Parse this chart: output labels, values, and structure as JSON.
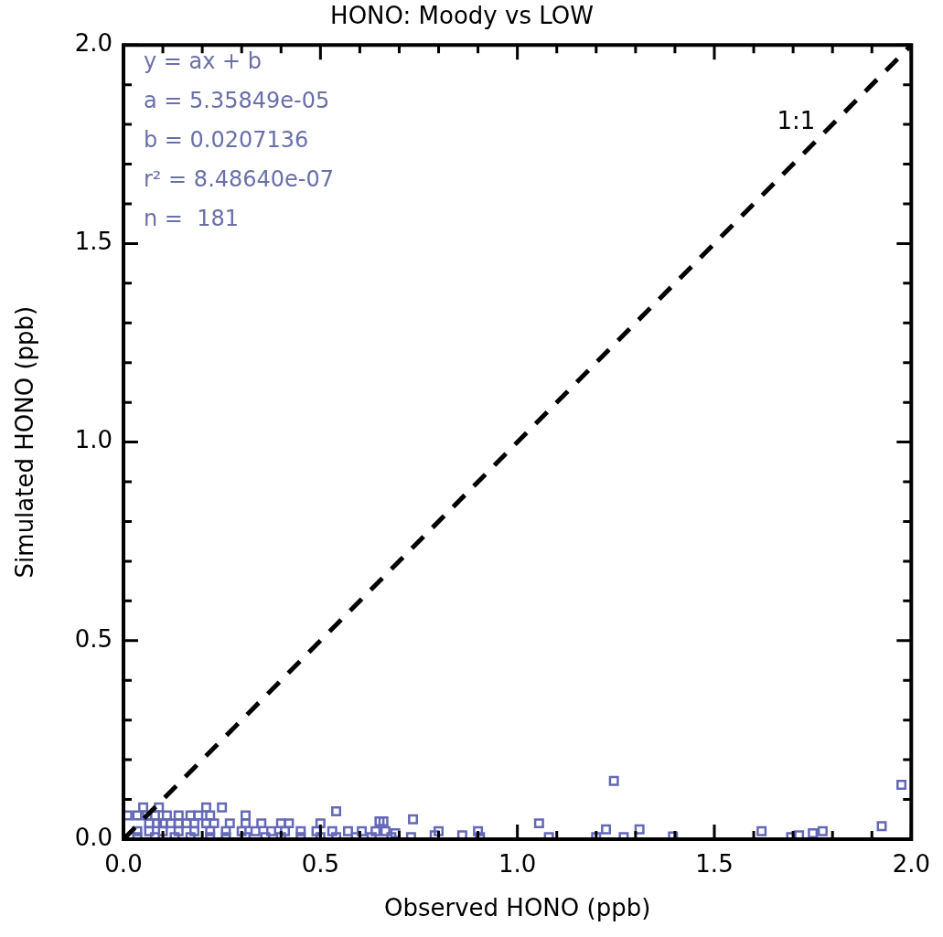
{
  "chart_data": {
    "type": "scatter",
    "title": "HONO: Moody vs LOW",
    "xlabel": "Observed HONO (ppb)",
    "ylabel": "Simulated HONO (ppb)",
    "xlim": [
      0,
      2
    ],
    "ylim": [
      0,
      2
    ],
    "xticks": [
      {
        "value": 0,
        "label": "0.0"
      },
      {
        "value": 0.1,
        "label": null
      },
      {
        "value": 0.2,
        "label": null
      },
      {
        "value": 0.3,
        "label": null
      },
      {
        "value": 0.4,
        "label": null
      },
      {
        "value": 0.5,
        "label": "0.5"
      },
      {
        "value": 0.6,
        "label": null
      },
      {
        "value": 0.7,
        "label": null
      },
      {
        "value": 0.8,
        "label": null
      },
      {
        "value": 0.9,
        "label": null
      },
      {
        "value": 1,
        "label": "1.0"
      },
      {
        "value": 1.1,
        "label": null
      },
      {
        "value": 1.2,
        "label": null
      },
      {
        "value": 1.3,
        "label": null
      },
      {
        "value": 1.4,
        "label": null
      },
      {
        "value": 1.5,
        "label": "1.5"
      },
      {
        "value": 1.6,
        "label": null
      },
      {
        "value": 1.7,
        "label": null
      },
      {
        "value": 1.8,
        "label": null
      },
      {
        "value": 1.9,
        "label": null
      },
      {
        "value": 2,
        "label": "2.0"
      }
    ],
    "yticks": [
      {
        "value": 0,
        "label": "0.0"
      },
      {
        "value": 0.1,
        "label": null
      },
      {
        "value": 0.2,
        "label": null
      },
      {
        "value": 0.3,
        "label": null
      },
      {
        "value": 0.4,
        "label": null
      },
      {
        "value": 0.5,
        "label": "0.5"
      },
      {
        "value": 0.6,
        "label": null
      },
      {
        "value": 0.7,
        "label": null
      },
      {
        "value": 0.8,
        "label": null
      },
      {
        "value": 0.9,
        "label": null
      },
      {
        "value": 1,
        "label": "1.0"
      },
      {
        "value": 1.1,
        "label": null
      },
      {
        "value": 1.2,
        "label": null
      },
      {
        "value": 1.3,
        "label": null
      },
      {
        "value": 1.4,
        "label": null
      },
      {
        "value": 1.5,
        "label": "1.5"
      },
      {
        "value": 1.6,
        "label": null
      },
      {
        "value": 1.7,
        "label": null
      },
      {
        "value": 1.8,
        "label": null
      },
      {
        "value": 1.9,
        "label": null
      },
      {
        "value": 2,
        "label": "2.0"
      }
    ],
    "grid": false,
    "legend": false,
    "marker": "square",
    "annotations": [
      "y = ax + b",
      "a = 5.35849e-05",
      "b = 0.0207136",
      "r² = 8.48640e-07",
      "n =  181"
    ],
    "series": [
      {
        "color": "#6468b8",
        "x": [
          0.05,
          0.09,
          0.21,
          0.25,
          0.01,
          0.035,
          0.06,
          0.08,
          0.11,
          0.14,
          0.17,
          0.19,
          0.22,
          0.31,
          0.54,
          0.065,
          0.085,
          0.1,
          0.12,
          0.14,
          0.16,
          0.18,
          0.21,
          0.23,
          0.27,
          0.31,
          0.35,
          0.4,
          0.42,
          0.5,
          0.65,
          0.035,
          0.065,
          0.1,
          0.14,
          0.18,
          0.22,
          0.26,
          0.3,
          0.335,
          0.375,
          0.41,
          0.45,
          0.49,
          0.53,
          0.57,
          0.605,
          0.64,
          0.665,
          0.035,
          0.08,
          0.13,
          0.17,
          0.22,
          0.26,
          0.31,
          0.36,
          0.4,
          0.45,
          0.5,
          0.54,
          0.59,
          0.63,
          0.68,
          0.66,
          0.735,
          0.69,
          0.73,
          0.79,
          0.8,
          0.86,
          0.9,
          0.905,
          1.055,
          1.08,
          1.2,
          1.225,
          1.27,
          1.31,
          1.395,
          1.62,
          1.695,
          1.715,
          1.75,
          1.775,
          1.925,
          1.975,
          1.245
        ],
        "values": [
          0.08,
          0.08,
          0.08,
          0.08,
          0.06,
          0.06,
          0.06,
          0.06,
          0.06,
          0.06,
          0.06,
          0.06,
          0.06,
          0.06,
          0.07,
          0.04,
          0.04,
          0.04,
          0.04,
          0.04,
          0.04,
          0.04,
          0.04,
          0.04,
          0.04,
          0.04,
          0.04,
          0.04,
          0.04,
          0.04,
          0.045,
          0.02,
          0.02,
          0.02,
          0.02,
          0.02,
          0.02,
          0.02,
          0.02,
          0.02,
          0.02,
          0.02,
          0.02,
          0.02,
          0.02,
          0.02,
          0.02,
          0.02,
          0.02,
          0.005,
          0.005,
          0.005,
          0.005,
          0.005,
          0.005,
          0.005,
          0.005,
          0.005,
          0.005,
          0.005,
          0.005,
          0.005,
          0.005,
          0.005,
          0.045,
          0.05,
          0.015,
          0.005,
          0.01,
          0.02,
          0.01,
          0.02,
          0.005,
          0.04,
          0.005,
          0.005,
          0.025,
          0.005,
          0.025,
          0.007,
          0.02,
          0.005,
          0.01,
          0.015,
          0.02,
          0.033,
          0.137,
          0.147
        ]
      },
      {
        "name": "1:1",
        "type": "line",
        "color": "#000000",
        "line_style": "dashed",
        "marker": "none",
        "x": [
          0,
          2
        ],
        "values": [
          0,
          2
        ]
      }
    ]
  }
}
